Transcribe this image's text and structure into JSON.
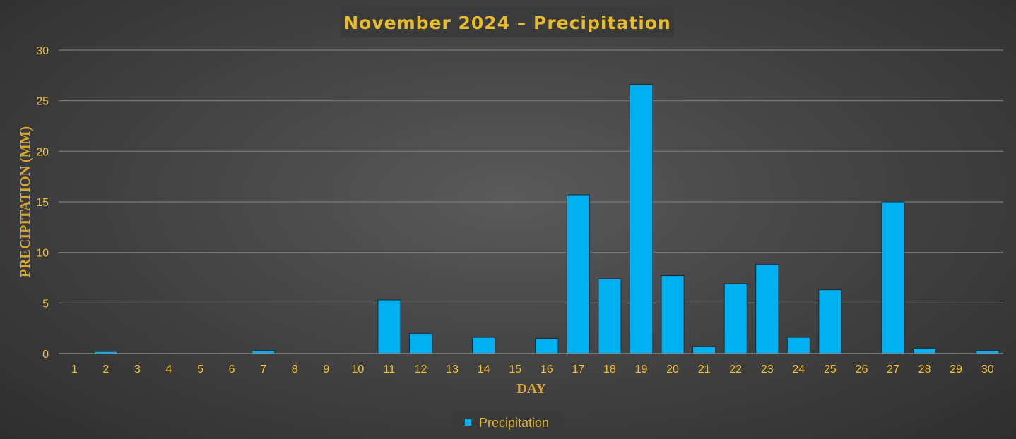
{
  "chart_data": {
    "type": "bar",
    "title": "November 2024  –  Precipitation",
    "xlabel": "DAY",
    "ylabel": "PRECIPITATION (MM)",
    "categories": [
      "1",
      "2",
      "3",
      "4",
      "5",
      "6",
      "7",
      "8",
      "9",
      "10",
      "11",
      "12",
      "13",
      "14",
      "15",
      "16",
      "17",
      "18",
      "19",
      "20",
      "21",
      "22",
      "23",
      "24",
      "25",
      "26",
      "27",
      "28",
      "29",
      "30"
    ],
    "series": [
      {
        "name": "Precipitation",
        "color": "#00b0f0",
        "values": [
          0,
          0.2,
          0,
          0,
          0,
          0,
          0.3,
          0,
          0,
          0,
          5.3,
          2.0,
          0,
          1.6,
          0,
          1.5,
          15.7,
          7.4,
          26.6,
          7.7,
          0.7,
          6.9,
          8.8,
          1.6,
          6.3,
          0,
          15.0,
          0.5,
          0,
          0.3
        ]
      }
    ],
    "ylim": [
      0,
      30
    ],
    "yticks": [
      0,
      5,
      10,
      15,
      20,
      25,
      30
    ],
    "grid": true,
    "legend_position": "bottom",
    "colors": {
      "title": "#e7bb2b",
      "ticks": "#f0c030",
      "axis_labels": "#d9a82a",
      "bars": "#00b0f0"
    }
  }
}
